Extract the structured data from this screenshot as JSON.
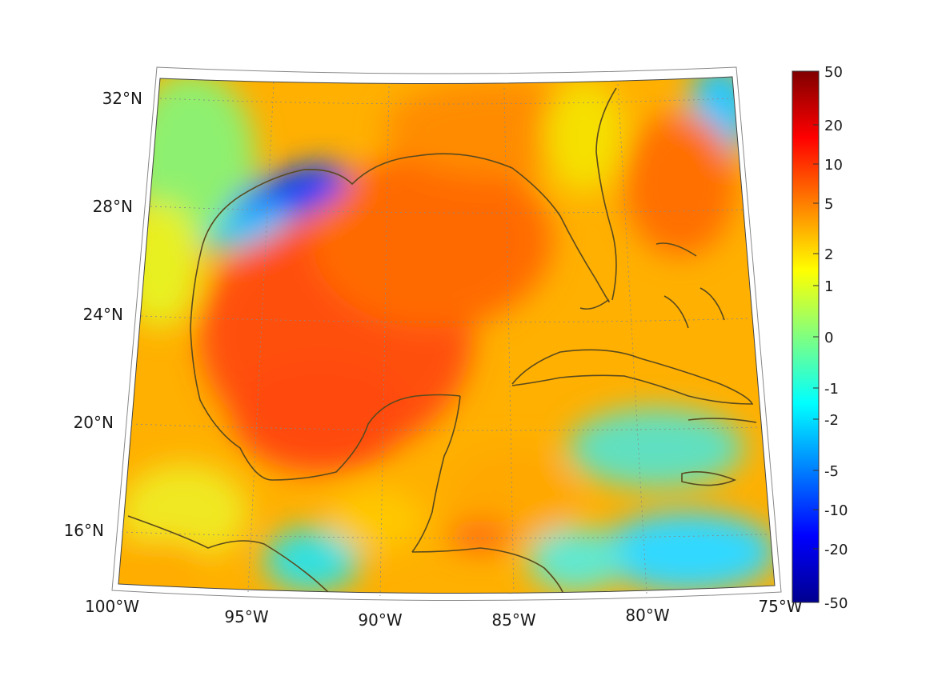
{
  "map": {
    "lat_labels": [
      {
        "text": "32°N",
        "lat": 32
      },
      {
        "text": "28°N",
        "lat": 28
      },
      {
        "text": "24°N",
        "lat": 24
      },
      {
        "text": "20°N",
        "lat": 20
      },
      {
        "text": "16°N",
        "lat": 16
      }
    ],
    "lon_labels": [
      {
        "text": "100°W",
        "lon": -100
      },
      {
        "text": "95°W",
        "lon": -95
      },
      {
        "text": "90°W",
        "lon": -90
      },
      {
        "text": "85°W",
        "lon": -85
      },
      {
        "text": "80°W",
        "lon": -80
      },
      {
        "text": "75°W",
        "lon": -75
      }
    ],
    "extent": {
      "lon_min": -100,
      "lon_max": -75,
      "lat_min": 14,
      "lat_max": 33
    },
    "coastline_color": "#5a4a1e",
    "grid_color": "#888888"
  },
  "colorbar": {
    "ticks": [
      "50",
      "20",
      "10",
      "5",
      "2",
      "1",
      "0",
      "-1",
      "-2",
      "-5",
      "-10",
      "-20",
      "-50"
    ],
    "colors": [
      "#00008f",
      "#0000ff",
      "#0080ff",
      "#00ffff",
      "#80ff80",
      "#ffff00",
      "#ff8000",
      "#ff0000",
      "#800000"
    ]
  },
  "chart_data": {
    "type": "heatmap",
    "title": "",
    "xlabel": "",
    "ylabel": "",
    "xlim": [
      -100,
      -75
    ],
    "ylim": [
      14,
      33
    ],
    "colorbar_ticks": [
      50,
      20,
      10,
      5,
      2,
      1,
      0,
      -1,
      -2,
      -5,
      -10,
      -20,
      -50
    ],
    "colorbar_range": [
      -50,
      50
    ]
  }
}
